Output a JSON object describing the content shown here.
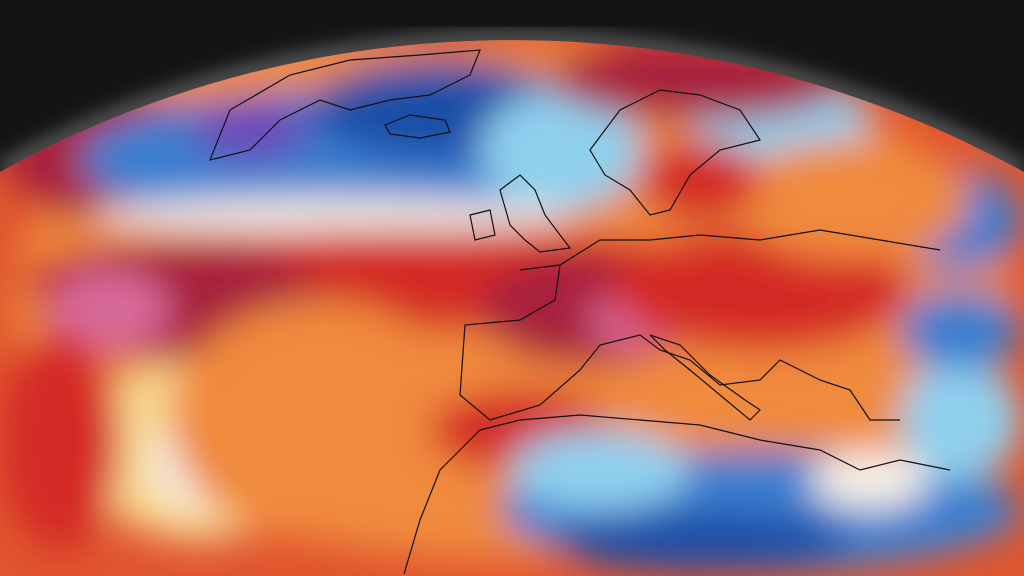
{
  "map": {
    "kind": "temperature-anomaly-globe",
    "palette": {
      "space": "#141414",
      "glow": "#ffffff",
      "deep_blue": "#1f4fa8",
      "blue": "#3a7fd0",
      "light_blue": "#8fd0ee",
      "white": "#f4efe6",
      "yellow": "#f8d890",
      "orange": "#f08a3c",
      "red": "#d42a26",
      "maroon": "#a8203c",
      "pink": "#d86a9a",
      "purple": "#6a48b8",
      "coastline": "#111111"
    }
  }
}
